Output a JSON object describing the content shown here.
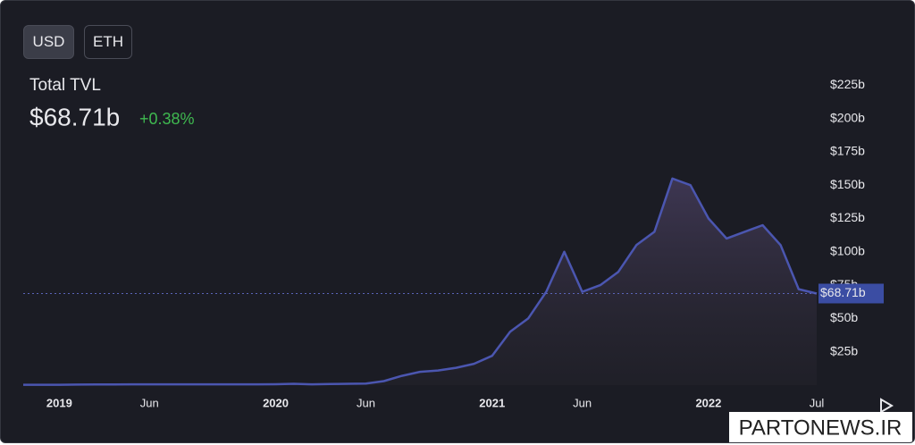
{
  "currency_options": [
    "USD",
    "ETH"
  ],
  "header": {
    "title": "Total TVL",
    "total": {
      "value": 68.71,
      "label": "$68.71b"
    },
    "change": {
      "value": 0.38,
      "label": "+0.38%"
    }
  },
  "watermark": "PARTONEWS.IR",
  "chart_data": {
    "type": "area",
    "color": "#4b56b0",
    "x": [
      "2018-11",
      "2018-12",
      "2019-01",
      "2019-02",
      "2019-03",
      "2019-04",
      "2019-05",
      "2019-06",
      "2019-07",
      "2019-08",
      "2019-09",
      "2019-10",
      "2019-11",
      "2019-12",
      "2020-01",
      "2020-02",
      "2020-03",
      "2020-04",
      "2020-05",
      "2020-06",
      "2020-07",
      "2020-08",
      "2020-09",
      "2020-10",
      "2020-11",
      "2020-12",
      "2021-01",
      "2021-02",
      "2021-03",
      "2021-04",
      "2021-05",
      "2021-06",
      "2021-07",
      "2021-08",
      "2021-09",
      "2021-10",
      "2021-11",
      "2021-12",
      "2022-01",
      "2022-02",
      "2022-03",
      "2022-04",
      "2022-05",
      "2022-06",
      "2022-07"
    ],
    "values": [
      0.3,
      0.3,
      0.3,
      0.4,
      0.5,
      0.5,
      0.6,
      0.6,
      0.6,
      0.6,
      0.6,
      0.6,
      0.6,
      0.6,
      0.7,
      1.0,
      0.6,
      0.8,
      1.0,
      1.2,
      3,
      7,
      10,
      11,
      13,
      16,
      22,
      40,
      50,
      70,
      100,
      70,
      75,
      85,
      105,
      115,
      155,
      150,
      125,
      110,
      115,
      120,
      105,
      72,
      68.71
    ],
    "ylim": [
      0,
      235
    ],
    "yticks": [
      {
        "value": 25,
        "label": "$25b"
      },
      {
        "value": 50,
        "label": "$50b"
      },
      {
        "value": 75,
        "label": "$75b"
      },
      {
        "value": 100,
        "label": "$100b"
      },
      {
        "value": 125,
        "label": "$125b"
      },
      {
        "value": 150,
        "label": "$150b"
      },
      {
        "value": 175,
        "label": "$175b"
      },
      {
        "value": 200,
        "label": "$200b"
      },
      {
        "value": 225,
        "label": "$225b"
      }
    ],
    "xticks": [
      {
        "value": "2019-01",
        "label": "2019"
      },
      {
        "value": "2019-06",
        "label": "Jun"
      },
      {
        "value": "2020-01",
        "label": "2020"
      },
      {
        "value": "2020-06",
        "label": "Jun"
      },
      {
        "value": "2021-01",
        "label": "2021"
      },
      {
        "value": "2021-06",
        "label": "Jun"
      },
      {
        "value": "2022-01",
        "label": "2022"
      },
      {
        "value": "2022-07",
        "label": "Jul"
      }
    ]
  }
}
